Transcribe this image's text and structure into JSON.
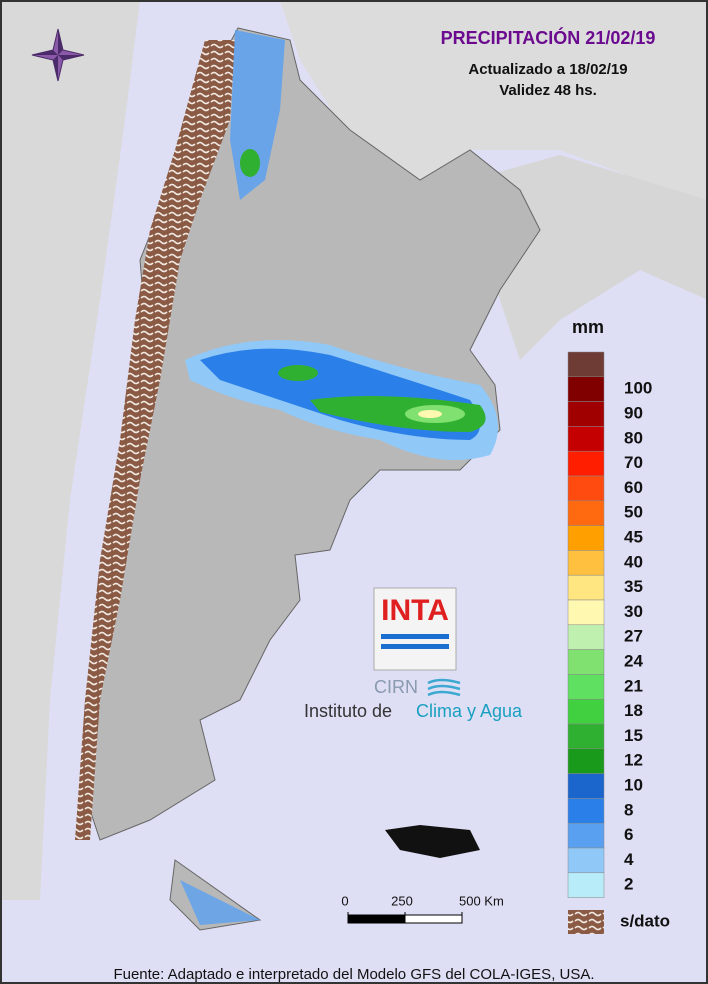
{
  "map": {
    "title": "PRECIPITACIÓN 21/02/19",
    "subtitle": [
      "Actualizado a 18/02/19",
      "Validez 48 hs."
    ],
    "legend": {
      "unit": "mm",
      "colors": [
        "#6e3c34",
        "#800000",
        "#a00000",
        "#c40000",
        "#ff1e00",
        "#ff4a10",
        "#ff6a10",
        "#ffa000",
        "#ffc040",
        "#ffe680",
        "#fff8b0",
        "#c0f0b0",
        "#80e070",
        "#60e060",
        "#40d040",
        "#30b030",
        "#1a9a1a",
        "#1a66cc",
        "#2a80e8",
        "#5aa0f0",
        "#90c8f8",
        "#b8ecf8"
      ],
      "labels": [
        100,
        90,
        80,
        70,
        60,
        50,
        45,
        40,
        35,
        30,
        27,
        24,
        21,
        18,
        15,
        12,
        10,
        8,
        6,
        4,
        2
      ],
      "nodata": "s/dato"
    },
    "scale_bar": {
      "ticks": [
        0,
        250,
        {
          "value": 500,
          "label": "500 Km"
        }
      ]
    },
    "logo": {
      "brand": "INTA",
      "unit": "CIRN",
      "institute": "Instituto de",
      "institute_highlight": "Clima y Agua"
    },
    "source": "Fuente: Adaptado e interpretado del Modelo GFS del COLA-IGES, USA."
  }
}
